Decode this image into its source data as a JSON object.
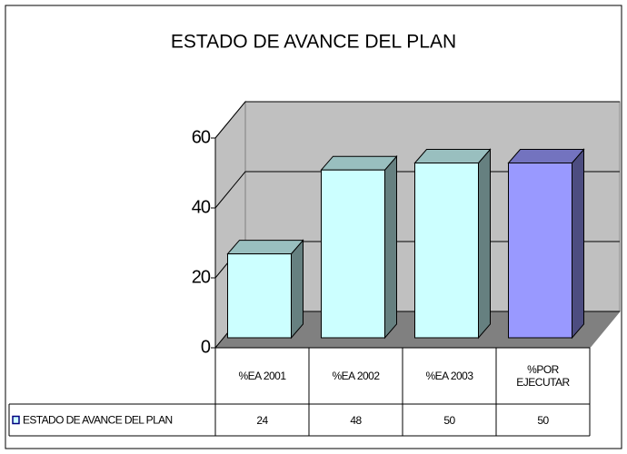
{
  "chart_data": {
    "type": "bar3d",
    "title": "ESTADO DE AVANCE DEL PLAN",
    "categories": [
      "%EA 2001",
      "%EA 2002",
      "%EA 2003",
      "%POR EJECUTAR"
    ],
    "series": [
      {
        "name": "ESTADO DE AVANCE DEL PLAN",
        "colors": [
          "#ccffff",
          "#ccffff",
          "#ccffff",
          "#9999ff"
        ],
        "values": [
          24,
          48,
          50,
          50
        ]
      }
    ],
    "ylim": [
      0,
      60
    ],
    "yticks": [
      0,
      20,
      40,
      60
    ],
    "grid": true,
    "data_table": true
  }
}
